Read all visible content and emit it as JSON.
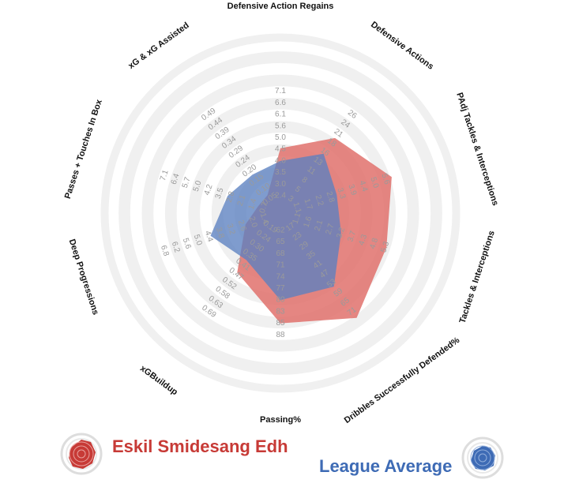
{
  "chart_data": {
    "type": "radar",
    "axes": [
      {
        "label": "Defensive Action Regains",
        "ticks": [
          "2.4",
          "3.0",
          "3.5",
          "4.0",
          "4.5",
          "5.0",
          "5.6",
          "6.1",
          "6.6",
          "7.1"
        ]
      },
      {
        "label": "Defensive Actions",
        "ticks": [
          "3",
          "5",
          "8",
          "11",
          "13",
          "16",
          "18",
          "21",
          "24",
          "26"
        ]
      },
      {
        "label": "PAdj Tackles & Interceptions",
        "ticks": [
          "1.1",
          "1.7",
          "2.2",
          "2.8",
          "3.3",
          "3.9",
          "4.4",
          "5.0",
          "5.6"
        ]
      },
      {
        "label": "Tackles & Interceptions",
        "ticks": [
          "1.1",
          "1.6",
          "2.1",
          "2.7",
          "3.2",
          "3.7",
          "4.3",
          "4.8",
          "5.3"
        ]
      },
      {
        "label": "Dribbles Successfully Defended%",
        "ticks": [
          "17",
          "23",
          "29",
          "35",
          "41",
          "47",
          "53",
          "59",
          "65",
          "71"
        ]
      },
      {
        "label": "Passing%",
        "ticks": [
          "62",
          "65",
          "68",
          "71",
          "74",
          "77",
          "80",
          "83",
          "85",
          "88"
        ]
      },
      {
        "label": "xGBuildup",
        "ticks": [
          "0.19",
          "0.24",
          "0.30",
          "0.35",
          "0.41",
          "0.47",
          "0.52",
          "0.58",
          "0.63",
          "0.69"
        ]
      },
      {
        "label": "Deep Progressions",
        "ticks": [
          "1.4",
          "2.0",
          "2.6",
          "3.2",
          "3.8",
          "4.4",
          "5.0",
          "5.6",
          "6.2",
          "6.8"
        ]
      },
      {
        "label": "Passes + Touches In Box",
        "ticks": [
          "0.7",
          "1.4",
          "2.1",
          "2.8",
          "3.5",
          "4.2",
          "5.0",
          "5.7",
          "6.4",
          "7.1"
        ]
      },
      {
        "label": "xG & xG Assisted",
        "ticks": [
          "0.05",
          "0.10",
          "0.15",
          "0.20",
          "0.24",
          "0.29",
          "0.34",
          "0.39",
          "0.44",
          "0.49"
        ]
      }
    ],
    "series": [
      {
        "name": "Eskil Smidesang Edh",
        "color": "#e0716c",
        "values": [
          4.55,
          19.5,
          5.95,
          5.35,
          75,
          85,
          0.46,
          2.4,
          1.05,
          0.07
        ]
      },
      {
        "name": "League Average",
        "color": "#5b80c0",
        "values": [
          4.0,
          15.5,
          3.1,
          3.2,
          55,
          80,
          0.38,
          4.3,
          3.0,
          0.18
        ]
      }
    ],
    "legend": [
      {
        "name": "Eskil Smidesang Edh",
        "color": "#c73a36"
      },
      {
        "name": "League Average",
        "color": "#3e6bb5"
      }
    ],
    "grid": true
  }
}
